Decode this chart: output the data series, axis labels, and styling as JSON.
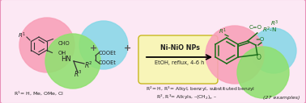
{
  "background_color": "#fce8f4",
  "outer_border_color": "#e890b8",
  "arrow_box_color": "#f8f5b8",
  "arrow_box_border": "#c8b820",
  "text_color_dark": "#222222",
  "text_color_green": "#1a6e1a",
  "reagent_text": "Ni-NiO NPs",
  "condition_text": "EtOH, reflux, 4-6 h",
  "r1_label": "R$^1$= H, Me, OMe, Cl",
  "r2r3_label1": "R$^2$= H, R$^3$= Alkyl, benzyl, substituted benzyl",
  "r2r3_label2": "R$^2$, R$^3$= Alkyls, –(CH$_2$)$_n$ –",
  "examples_label": "(27 examples)"
}
